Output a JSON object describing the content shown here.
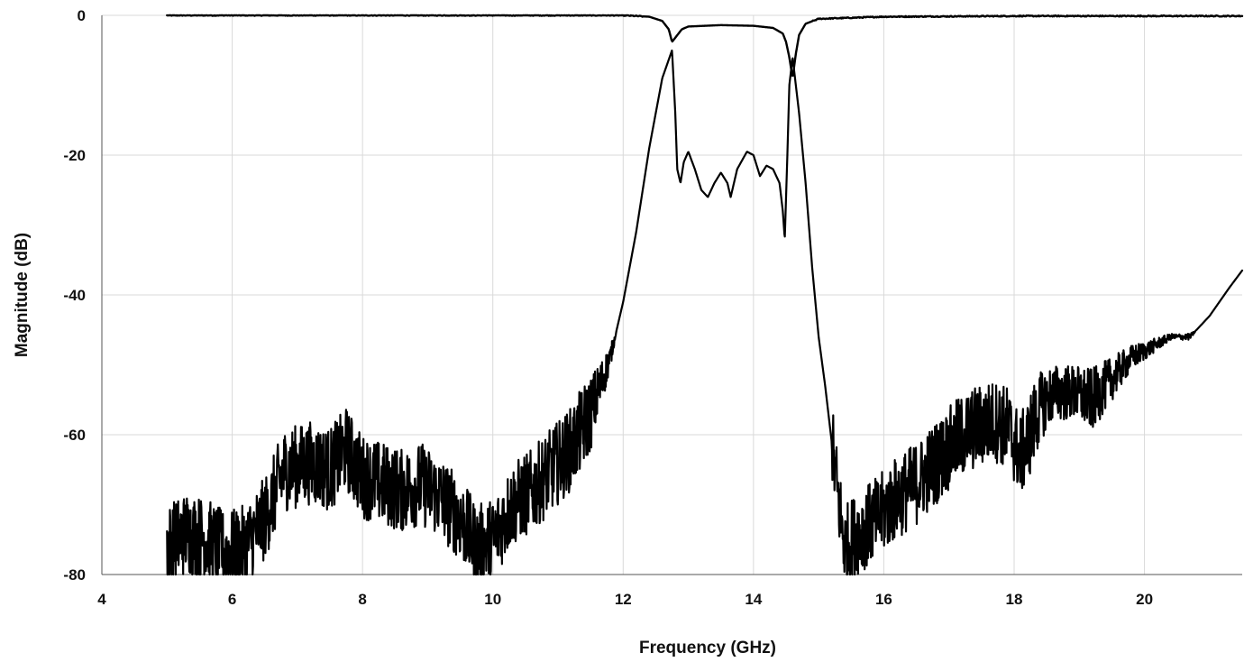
{
  "chart_data": {
    "type": "line",
    "title": "",
    "xlabel": "Frequency (GHz)",
    "ylabel": "Magnitude (dB)",
    "xlim": [
      4,
      21.5
    ],
    "ylim": [
      -80,
      0
    ],
    "xticks": [
      4,
      6,
      8,
      10,
      12,
      14,
      16,
      18,
      20
    ],
    "yticks": [
      0,
      -20,
      -40,
      -60,
      -80
    ],
    "grid": true,
    "legend": "none",
    "colors": {
      "trace": "#000000",
      "grid": "#d9d9d9"
    },
    "series": [
      {
        "x": [
          5.0,
          11.0,
          12.0,
          12.4,
          12.6,
          12.7,
          12.75,
          12.8,
          12.9,
          13.0,
          13.5,
          14.0,
          14.3,
          14.45,
          14.5,
          14.55,
          14.6,
          14.65,
          14.7,
          14.8,
          15.0,
          16.0,
          18.0,
          21.5
        ],
        "values": [
          0,
          0,
          0,
          -0.2,
          -0.8,
          -2,
          -3.8,
          -3.2,
          -2.0,
          -1.6,
          -1.4,
          -1.5,
          -1.8,
          -2.6,
          -3.8,
          -6,
          -9,
          -5.5,
          -2.8,
          -1.2,
          -0.5,
          -0.2,
          -0.1,
          -0.1
        ]
      },
      {
        "x": [
          5.0,
          5.3,
          5.6,
          5.9,
          6.2,
          6.5,
          6.8,
          7.2,
          7.5,
          7.75,
          8.0,
          8.3,
          8.6,
          8.9,
          9.2,
          9.5,
          9.75,
          10.0,
          10.3,
          10.6,
          10.9,
          11.2,
          11.5,
          11.8,
          12.0,
          12.2,
          12.4,
          12.6,
          12.75,
          12.8,
          12.83,
          12.88,
          12.93,
          13.0,
          13.1,
          13.2,
          13.3,
          13.4,
          13.5,
          13.6,
          13.65,
          13.75,
          13.9,
          14.0,
          14.1,
          14.2,
          14.3,
          14.4,
          14.45,
          14.48,
          14.52,
          14.55,
          14.6,
          14.7,
          14.8,
          14.9,
          15.0,
          15.1,
          15.2,
          15.3,
          15.4,
          15.6,
          15.9,
          16.2,
          16.5,
          16.8,
          17.1,
          17.4,
          17.7,
          17.9,
          18.1,
          18.2,
          18.4,
          18.6,
          18.9,
          19.2,
          19.5,
          19.8,
          20.1,
          20.4,
          20.7,
          21.0,
          21.3,
          21.5
        ],
        "values": [
          -76,
          -74,
          -75,
          -77,
          -76,
          -72,
          -65,
          -64,
          -65,
          -62,
          -66,
          -67,
          -68,
          -67,
          -69,
          -72,
          -76,
          -75,
          -70,
          -68,
          -65,
          -62,
          -57,
          -49,
          -41,
          -31,
          -19,
          -9,
          -5,
          -14,
          -22,
          -24,
          -21,
          -19.5,
          -22,
          -25,
          -26,
          -24,
          -22.5,
          -24,
          -26,
          -22,
          -19.5,
          -20,
          -23,
          -21.5,
          -22,
          -24,
          -28,
          -32,
          -20,
          -10,
          -6,
          -14,
          -24,
          -36,
          -46,
          -53,
          -61,
          -69,
          -76,
          -74,
          -72,
          -69,
          -67,
          -64,
          -61,
          -59,
          -58,
          -59,
          -63,
          -61,
          -56,
          -54,
          -54,
          -55,
          -52,
          -49,
          -47.5,
          -46,
          -46,
          -43,
          -39,
          -36.5
        ]
      }
    ]
  }
}
